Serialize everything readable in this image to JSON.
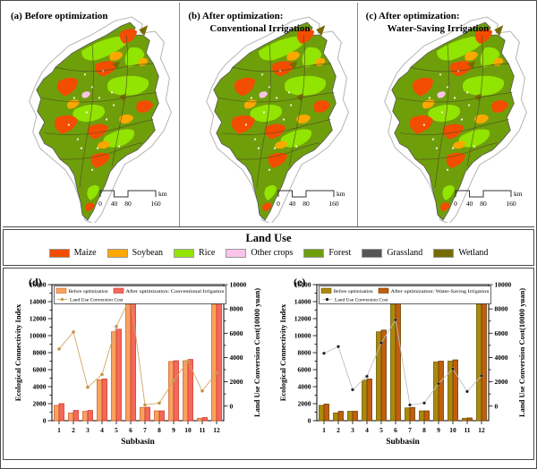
{
  "maps": {
    "panels": [
      {
        "id": "a",
        "title_lines": [
          "(a) Before optimization"
        ]
      },
      {
        "id": "b",
        "title_lines": [
          "(b) After optimization:",
          "Conventional Irrigation"
        ]
      },
      {
        "id": "c",
        "title_lines": [
          "(c) After optimization:",
          "Water-Saving Irrigation"
        ]
      }
    ],
    "scalebar": {
      "tick_labels": [
        "0",
        "40",
        "80",
        "160"
      ],
      "unit": "km"
    },
    "boundary_color": "#b5b5b5",
    "subbasin_line_color": "#4d4d20"
  },
  "land_use_legend": {
    "title": "Land Use",
    "items": [
      {
        "label": "Maize",
        "color": "#F24D02"
      },
      {
        "label": "Soybean",
        "color": "#FCA800"
      },
      {
        "label": "Rice",
        "color": "#92E402"
      },
      {
        "label": "Other crops",
        "color": "#FAC4E8"
      },
      {
        "label": "Forest",
        "color": "#6F9E0B"
      },
      {
        "label": "Grassland",
        "color": "#565656"
      },
      {
        "label": "Wetland",
        "color": "#756B00"
      }
    ]
  },
  "chart_data": [
    {
      "type": "bar",
      "panel_label": "(d)",
      "categories": [
        "1",
        "2",
        "3",
        "4",
        "5",
        "6",
        "7",
        "8",
        "9",
        "10",
        "11",
        "12"
      ],
      "xlabel": "Subbasin",
      "ylabel_left": "Ecological Connectivity Index",
      "ylabel_right": "Land Use Conversion Cost(10000 yuan)",
      "ylim_left": [
        0,
        16000
      ],
      "ytick_step_left": 2000,
      "ylim_right": [
        0,
        10000
      ],
      "ytick_step_right": 2000,
      "legend_position": "top-inside",
      "grid": false,
      "series": [
        {
          "name": "Before optimization",
          "type": "bar",
          "fill": "#F8A25E",
          "stroke": "#D3622F",
          "values": [
            1800,
            900,
            1100,
            4800,
            10450,
            13700,
            1550,
            1150,
            6950,
            7050,
            280,
            13700
          ]
        },
        {
          "name": "After optimization: Conventional Irrigation",
          "type": "bar",
          "fill": "#F4695C",
          "stroke": "#CE3A28",
          "values": [
            2000,
            1200,
            1200,
            4900,
            10750,
            14050,
            1570,
            1150,
            7050,
            7200,
            360,
            13800
          ]
        },
        {
          "name": "Land Use Conversion Cost",
          "type": "line",
          "axis": "right",
          "line_color": "#D2A563",
          "marker_color": "#C89145",
          "values": [
            4700,
            6100,
            1550,
            2600,
            6550,
            9000,
            100,
            250,
            2100,
            3700,
            1250,
            2750
          ]
        }
      ]
    },
    {
      "type": "bar",
      "panel_label": "(e)",
      "categories": [
        "1",
        "2",
        "3",
        "4",
        "5",
        "6",
        "7",
        "8",
        "9",
        "10",
        "11",
        "12"
      ],
      "xlabel": "Subbasin",
      "ylabel_left": "Ecological Connectivity Index",
      "ylabel_right": "Land Use Conversion Cost(10000 yuan)",
      "ylim_left": [
        0,
        16000
      ],
      "ytick_step_left": 2000,
      "ylim_right": [
        0,
        10000
      ],
      "ytick_step_right": 2000,
      "legend_position": "top-inside",
      "grid": false,
      "series": [
        {
          "name": "Before optimization",
          "type": "bar",
          "fill": "#AB8A0B",
          "stroke": "#6E5800",
          "values": [
            1800,
            900,
            1100,
            4750,
            10450,
            13700,
            1500,
            1150,
            6900,
            7000,
            280,
            13700
          ]
        },
        {
          "name": "After optimization: Water-Saving Irrigation",
          "type": "bar",
          "fill": "#C05F10",
          "stroke": "#6E3A00",
          "values": [
            1950,
            1100,
            1100,
            4900,
            10650,
            13950,
            1550,
            1150,
            7000,
            7150,
            320,
            13750
          ]
        },
        {
          "name": "Land Use Conversion Cost",
          "type": "line",
          "axis": "right",
          "line_color": "#BFBFBF",
          "marker_color": "#1A1A1A",
          "values": [
            4350,
            4900,
            1350,
            2450,
            5200,
            7100,
            100,
            250,
            1850,
            3050,
            1200,
            2500
          ]
        }
      ]
    }
  ]
}
